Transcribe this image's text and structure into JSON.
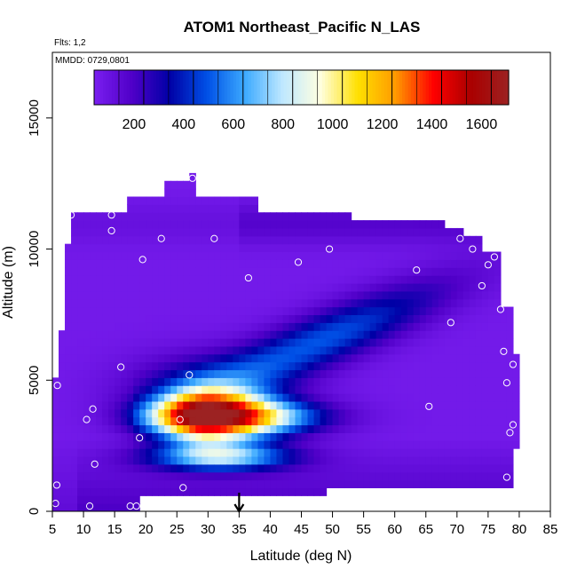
{
  "chart_data": {
    "type": "heatmap",
    "title": "ATOM1 Northeast_Pacific N_LAS",
    "annotations": [
      "Flts: 1,2",
      "MMDD: 0729,0801"
    ],
    "xlabel": "Latitude (deg N)",
    "ylabel": "Altitude (m)",
    "xlim": [
      5,
      85
    ],
    "ylim": [
      0,
      17500
    ],
    "x_ticks": [
      "5",
      "10",
      "15",
      "20",
      "25",
      "30",
      "35",
      "40",
      "45",
      "50",
      "55",
      "60",
      "65",
      "70",
      "75",
      "80",
      "85"
    ],
    "y_ticks": [
      "0",
      "5000",
      "10000",
      "15000"
    ],
    "colorbar": {
      "range": [
        0,
        1670
      ],
      "ticks": [
        "200",
        "400",
        "600",
        "800",
        "1000",
        "1200",
        "1400",
        "1600"
      ],
      "placement": "top-inside",
      "colors": [
        "#7a1ff0",
        "#5000c8",
        "#0000a6",
        "#0050e6",
        "#3caaff",
        "#bfe8ff",
        "#ffffe0",
        "#ffe000",
        "#ff9900",
        "#ff0000",
        "#aa0000",
        "#9c2222"
      ]
    },
    "marker": {
      "latitude": 35,
      "symbol": "down-arrow"
    },
    "grid": false,
    "samples": [
      {
        "x": 5.5,
        "y": 300
      },
      {
        "x": 5.7,
        "y": 1000
      },
      {
        "x": 5.8,
        "y": 4800
      },
      {
        "x": 8,
        "y": 11300
      },
      {
        "x": 11,
        "y": 200
      },
      {
        "x": 10.5,
        "y": 3500
      },
      {
        "x": 11.5,
        "y": 3900
      },
      {
        "x": 11.8,
        "y": 1800
      },
      {
        "x": 14.5,
        "y": 11300
      },
      {
        "x": 14.5,
        "y": 10700
      },
      {
        "x": 16,
        "y": 5500
      },
      {
        "x": 17.5,
        "y": 200
      },
      {
        "x": 18.5,
        "y": 200
      },
      {
        "x": 19,
        "y": 2800
      },
      {
        "x": 19.5,
        "y": 9600
      },
      {
        "x": 22.5,
        "y": 10400
      },
      {
        "x": 25.5,
        "y": 3500
      },
      {
        "x": 26,
        "y": 900
      },
      {
        "x": 27,
        "y": 5200
      },
      {
        "x": 27.5,
        "y": 12700
      },
      {
        "x": 31,
        "y": 10400
      },
      {
        "x": 36.5,
        "y": 8900
      },
      {
        "x": 44.5,
        "y": 9500
      },
      {
        "x": 49.5,
        "y": 10000
      },
      {
        "x": 63.5,
        "y": 9200
      },
      {
        "x": 65.5,
        "y": 4000
      },
      {
        "x": 67.5,
        "y": 11400
      },
      {
        "x": 69,
        "y": 7200
      },
      {
        "x": 70.5,
        "y": 10400
      },
      {
        "x": 72.5,
        "y": 10000
      },
      {
        "x": 74,
        "y": 8600
      },
      {
        "x": 75,
        "y": 9400
      },
      {
        "x": 76,
        "y": 9700
      },
      {
        "x": 77,
        "y": 7700
      },
      {
        "x": 77.5,
        "y": 6100
      },
      {
        "x": 78,
        "y": 4900
      },
      {
        "x": 78,
        "y": 1300
      },
      {
        "x": 78.5,
        "y": 3000
      },
      {
        "x": 79,
        "y": 3300
      },
      {
        "x": 79,
        "y": 5600
      }
    ]
  }
}
